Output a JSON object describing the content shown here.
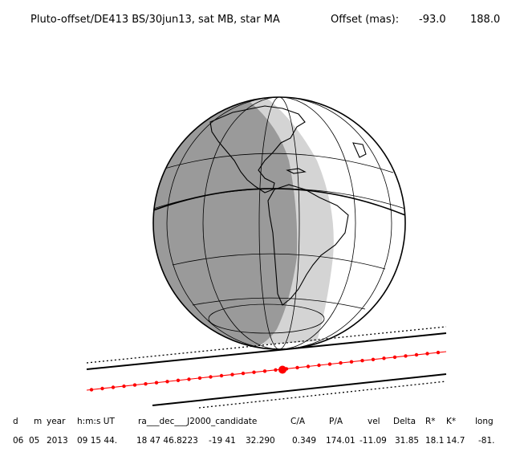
{
  "header": {
    "title": "Pluto-offset/DE413 BS/30jun13, sat MB, star MA",
    "offset_label": "Offset (mas):",
    "offset_x": "-93.0",
    "offset_y": "188.0"
  },
  "table": {
    "headers": [
      "d",
      "m",
      "year",
      "h:m:s UT",
      "ra___dec___J2000_candidate",
      "C/A",
      "P/A",
      "vel",
      "Delta",
      "R*",
      "K*",
      "long"
    ],
    "values": [
      "06",
      "05",
      "2013",
      "09 15 44.",
      "18 47 46.8223",
      "-19 41",
      "32.290",
      "0.349",
      "174.01",
      "-11.09",
      "31.85",
      "18.1",
      "14.7",
      "-81."
    ]
  },
  "colors": {
    "night": "#9a9a9a",
    "twilight": "#d4d4d4",
    "day": "#ffffff",
    "track": "#ff0000",
    "outline": "#000000"
  }
}
